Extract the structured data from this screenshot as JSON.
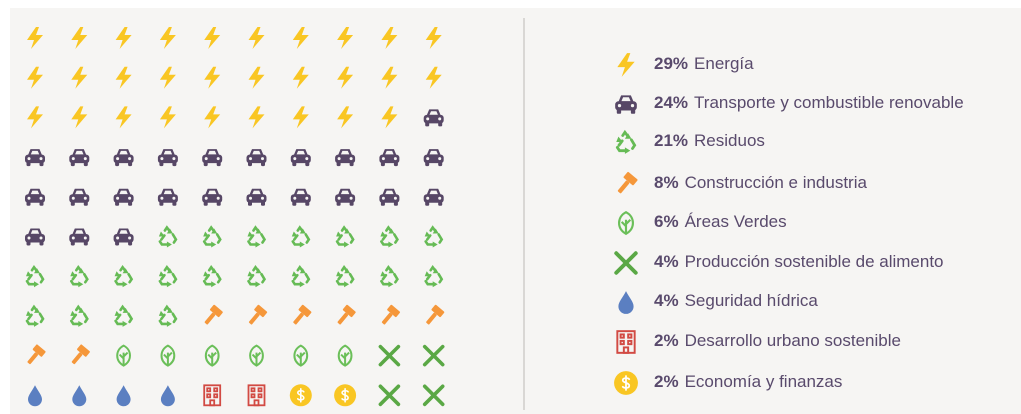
{
  "chart_data": {
    "type": "waffle",
    "categories": [
      "Energía",
      "Transporte y combustible renovable",
      "Residuos",
      "Construcción e industria",
      "Áreas Verdes",
      "Producción sostenible de alimento",
      "Seguridad hídrica",
      "Desarrollo urbano sostenible",
      "Economía y finanzas"
    ],
    "values": [
      29,
      24,
      21,
      8,
      6,
      4,
      4,
      2,
      2
    ],
    "value_labels": [
      "29%",
      "24%",
      "21%",
      "8%",
      "6%",
      "4%",
      "4%",
      "2%",
      "2%"
    ],
    "colors": [
      "#f9c623",
      "#574766",
      "#66bb55",
      "#f5973a",
      "#6bbf59",
      "#5aa845",
      "#5b7fc1",
      "#d24a43",
      "#f9c623"
    ]
  }
}
